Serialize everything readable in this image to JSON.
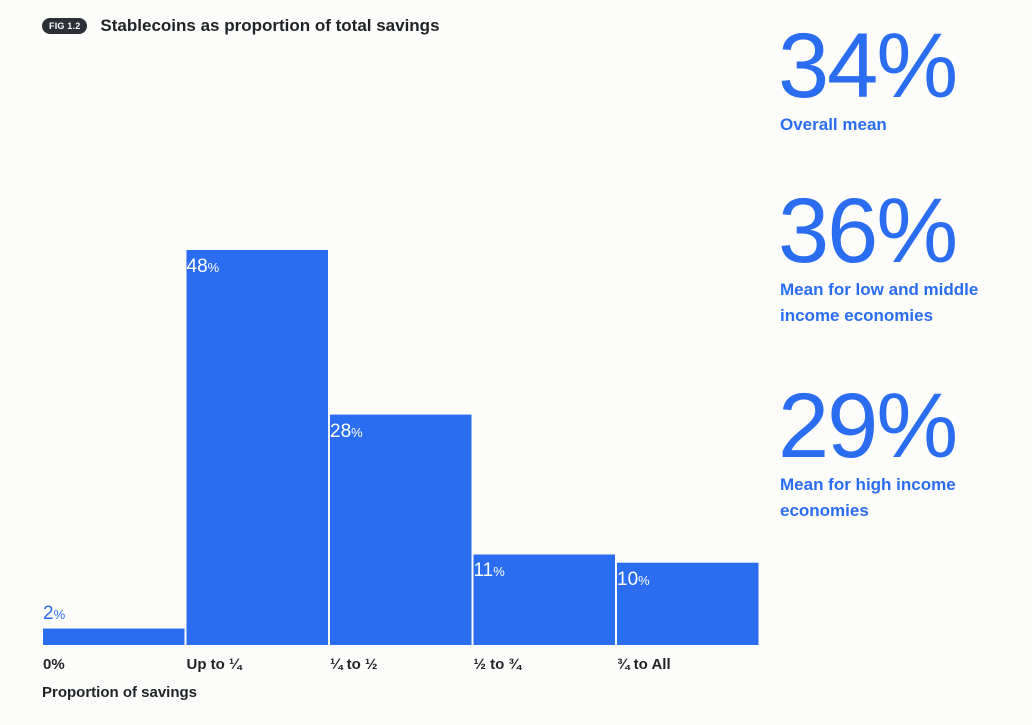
{
  "header": {
    "fig_label": "FIG 1.2",
    "title": "Stablecoins as proportion of total savings"
  },
  "colors": {
    "bar": "#2b6df0",
    "accent_text": "#2b6df0",
    "badge_bg": "#2b2f36"
  },
  "chart_data": {
    "type": "bar",
    "title": "Stablecoins as proportion of total savings",
    "categories": [
      "0%",
      "Up to ¼",
      "¼ to ½",
      "½ to ¾",
      "¾ to All"
    ],
    "values": [
      2,
      48,
      28,
      11,
      10
    ],
    "value_suffix": "%",
    "xlabel": "Proportion of savings",
    "ylabel": "",
    "ylim": [
      0,
      48
    ],
    "grid": false
  },
  "stats": [
    {
      "value": "34%",
      "label": "Overall mean"
    },
    {
      "value": "36%",
      "label": "Mean for low and middle income economies"
    },
    {
      "value": "29%",
      "label": "Mean for high income economies"
    }
  ]
}
